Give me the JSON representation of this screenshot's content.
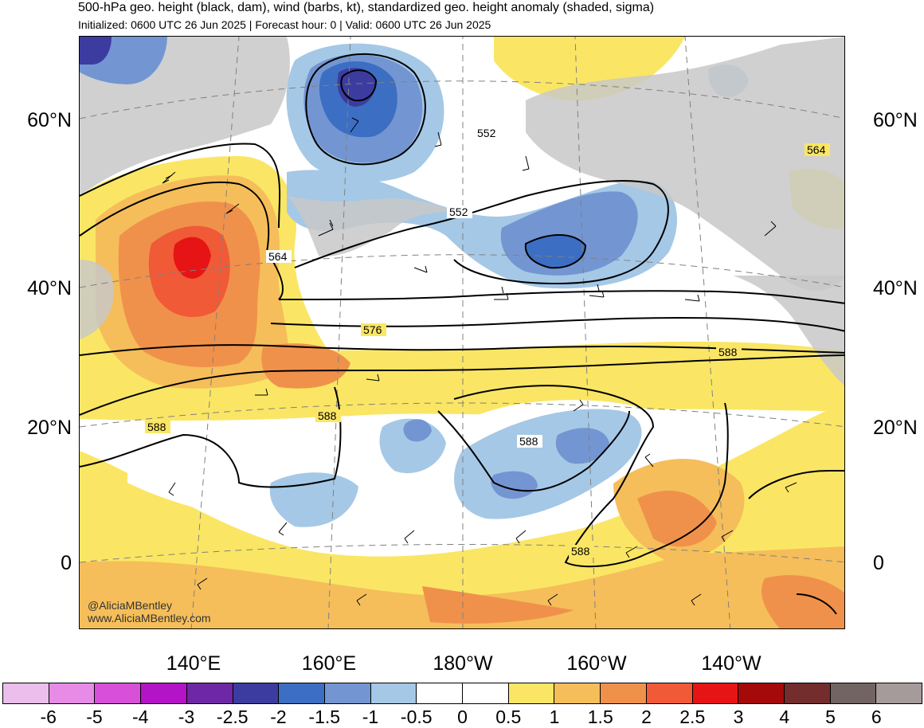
{
  "header": {
    "title": "500-hPa geo. height (black, dam), wind (barbs, kt), standardized geo. height anomaly (shaded, sigma)",
    "subtitle": "Initialized: 0600 UTC 26 Jun 2025 | Forecast hour: 0 | Valid: 0600 UTC 26 Jun 2025"
  },
  "map": {
    "lat_labels": [
      "60°N",
      "40°N",
      "20°N",
      "0"
    ],
    "lon_labels": [
      "140°E",
      "160°E",
      "180°W",
      "160°W",
      "140°W"
    ],
    "contour_labels": [
      "552",
      "552",
      "564",
      "564",
      "576",
      "588",
      "588",
      "588",
      "588",
      "588"
    ],
    "credits": [
      "@AliciaMBentley",
      "www.AliciaMBentley.com"
    ],
    "colors": {
      "land": "#c8c8c8",
      "ocean": "#ffffff",
      "contour": "#000000",
      "graticule": "#808080"
    }
  },
  "colorbar": {
    "ticks": [
      "-6",
      "-5",
      "-4",
      "-3",
      "-2.5",
      "-2",
      "-1.5",
      "-1",
      "-0.5",
      "0",
      "0.5",
      "1",
      "1.5",
      "2",
      "2.5",
      "3",
      "4",
      "5",
      "6"
    ],
    "colors": [
      "#ebbeeb",
      "#e68ce6",
      "#d750d7",
      "#b414c8",
      "#6e28a5",
      "#3c3ca0",
      "#3c6ec3",
      "#7396d2",
      "#a5c8e6",
      "#ffffff",
      "#ffffff",
      "#fae664",
      "#f5be5a",
      "#f0914b",
      "#f05a37",
      "#e61414",
      "#a50a0a",
      "#732d2d",
      "#736464",
      "#a59b9b"
    ]
  }
}
